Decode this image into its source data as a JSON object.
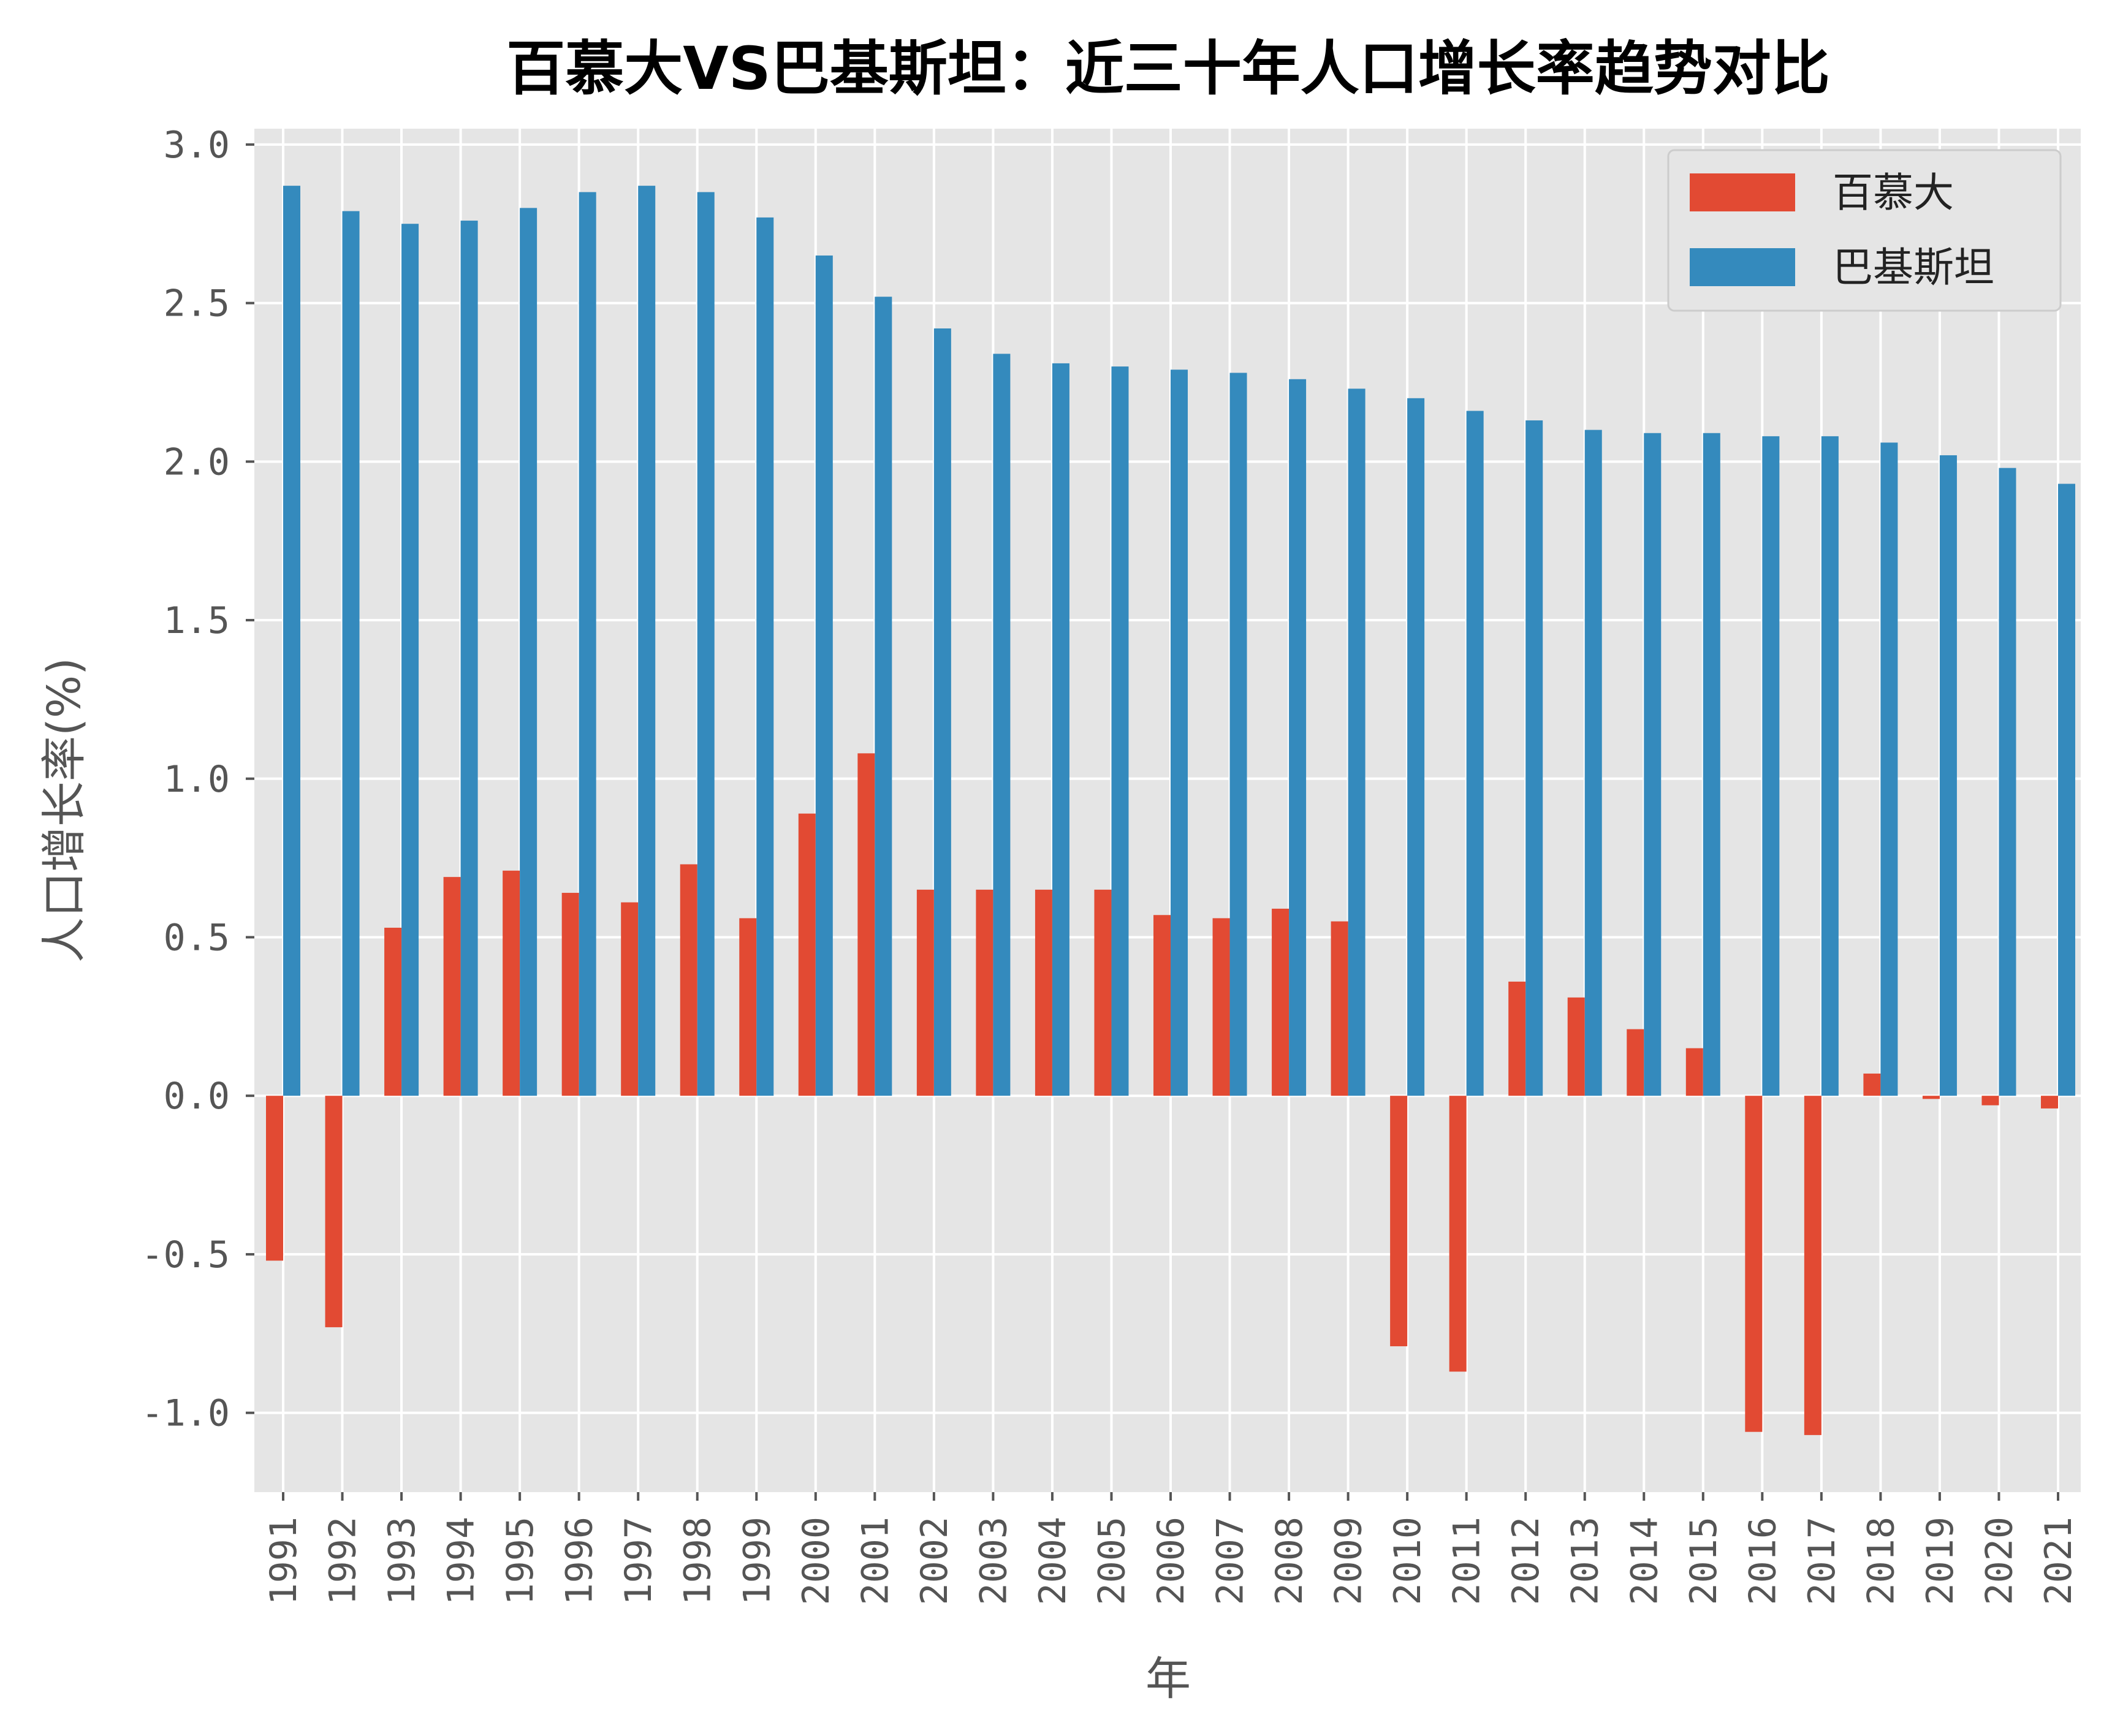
{
  "chart_data": {
    "type": "bar",
    "title": "百慕大VS巴基斯坦：近三十年人口增长率趋势对比",
    "xlabel": "年",
    "ylabel": "人口增长率(%)",
    "ylim": [
      -1.25,
      3.05
    ],
    "yticks": [
      -1.0,
      -0.5,
      0.0,
      0.5,
      1.0,
      1.5,
      2.0,
      2.5,
      3.0
    ],
    "ytick_labels": [
      "-1.0",
      "-0.5",
      "0.0",
      "0.5",
      "1.0",
      "1.5",
      "2.0",
      "2.5",
      "3.0"
    ],
    "grid": true,
    "legend_position": "top-right",
    "categories": [
      "1991",
      "1992",
      "1993",
      "1994",
      "1995",
      "1996",
      "1997",
      "1998",
      "1999",
      "2000",
      "2001",
      "2002",
      "2003",
      "2004",
      "2005",
      "2006",
      "2007",
      "2008",
      "2009",
      "2010",
      "2011",
      "2012",
      "2013",
      "2014",
      "2015",
      "2016",
      "2017",
      "2018",
      "2019",
      "2020",
      "2021"
    ],
    "series": [
      {
        "name": "百慕大",
        "color": "#E24A33",
        "values": [
          -0.52,
          -0.73,
          0.53,
          0.69,
          0.71,
          0.64,
          0.61,
          0.73,
          0.56,
          0.89,
          1.08,
          0.65,
          0.65,
          0.65,
          0.65,
          0.57,
          0.56,
          0.59,
          0.55,
          -0.79,
          -0.87,
          0.36,
          0.31,
          0.21,
          0.15,
          -1.06,
          -1.07,
          0.07,
          -0.01,
          -0.03,
          -0.04
        ]
      },
      {
        "name": "巴基斯坦",
        "color": "#348ABD",
        "values": [
          2.87,
          2.79,
          2.75,
          2.76,
          2.8,
          2.85,
          2.87,
          2.85,
          2.77,
          2.65,
          2.52,
          2.42,
          2.34,
          2.31,
          2.3,
          2.29,
          2.28,
          2.26,
          2.23,
          2.2,
          2.16,
          2.13,
          2.1,
          2.09,
          2.09,
          2.08,
          2.08,
          2.06,
          2.02,
          1.98,
          1.93
        ]
      }
    ]
  }
}
